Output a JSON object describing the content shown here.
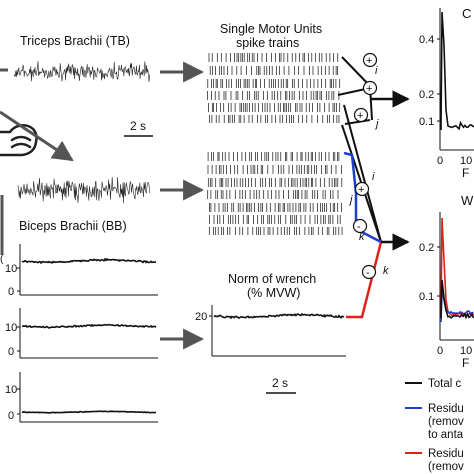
{
  "labels": {
    "triceps": "Triceps Brachii (TB)",
    "biceps": "Biceps Brachii (BB)",
    "smu_line1": "Single Motor Units",
    "smu_line2": "spike trains",
    "norm_line1": "Norm of wrench",
    "norm_line2": "(% MVW)",
    "scale_emg": "2 s",
    "scale_norm": "2 s"
  },
  "operators": {
    "plus": "+",
    "minus": "-",
    "i": "i",
    "j": "j",
    "k": "k"
  },
  "ticks": {
    "left_y": [
      "10",
      "0",
      "10",
      "0",
      "10",
      "0"
    ],
    "norm_y": "20",
    "right_top_y": [
      "0.4",
      "0.2",
      "0.1"
    ],
    "right_top_x": [
      "0",
      "10"
    ],
    "right_bottom_y": [
      "0.2",
      "0.1"
    ],
    "right_bottom_x": [
      "0",
      "10"
    ],
    "right_top_title": "C",
    "right_bottom_title": "W",
    "right_bottom_xlabel": "F",
    "right_top_xlabel": "F"
  },
  "legend": {
    "items": [
      {
        "lines": [
          "Total c"
        ],
        "color": "#111111"
      },
      {
        "lines": [
          "Residu",
          "(remov",
          "to anta"
        ],
        "color": "#1f3fcf"
      },
      {
        "lines": [
          "Residu",
          "(remov"
        ],
        "color": "#e0201b"
      }
    ]
  },
  "colors": {
    "black": "#111111",
    "blue": "#1f3fcf",
    "red": "#e0201b",
    "gray": "#555555"
  }
}
